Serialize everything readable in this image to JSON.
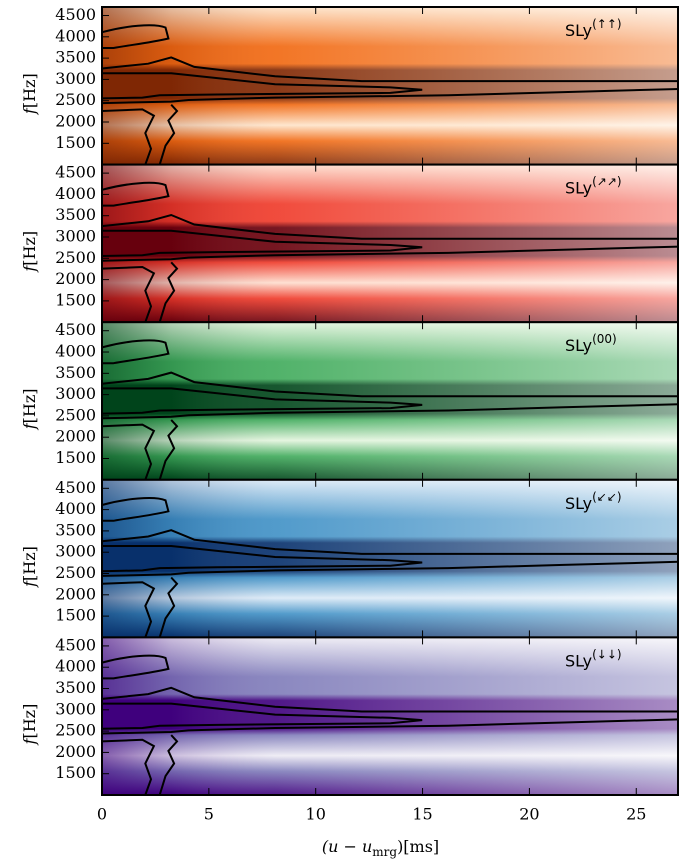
{
  "chart_data": [
    {
      "type": "spectrogram",
      "label": {
        "main": "SLy",
        "sup": "(↑↑)"
      },
      "y_label": {
        "var": "f",
        "unit": "[Hz]"
      },
      "colors": [
        "#7f2704",
        "#f16913",
        "#fee6ce"
      ],
      "xlim": [
        0,
        27
      ],
      "xticks": [
        0,
        5,
        10,
        15,
        20,
        25
      ],
      "ylim": [
        1000,
        4700
      ],
      "yticks": [
        1500,
        2000,
        2500,
        3000,
        3500,
        4000,
        4500
      ]
    },
    {
      "type": "spectrogram",
      "label": {
        "main": "SLy",
        "sup": "(↗↗)"
      },
      "y_label": {
        "var": "f",
        "unit": "[Hz]"
      },
      "colors": [
        "#67000d",
        "#ef3b2c",
        "#fee0d2"
      ],
      "xlim": [
        0,
        27
      ],
      "xticks": [
        0,
        5,
        10,
        15,
        20,
        25
      ],
      "ylim": [
        1000,
        4700
      ],
      "yticks": [
        1500,
        2000,
        2500,
        3000,
        3500,
        4000,
        4500
      ]
    },
    {
      "type": "spectrogram",
      "label": {
        "main": "SLy",
        "sup": "(00)"
      },
      "y_label": {
        "var": "f",
        "unit": "[Hz]"
      },
      "colors": [
        "#00441b",
        "#41ab5d",
        "#e5f5e0"
      ],
      "xlim": [
        0,
        27
      ],
      "xticks": [
        0,
        5,
        10,
        15,
        20,
        25
      ],
      "ylim": [
        1000,
        4700
      ],
      "yticks": [
        1500,
        2000,
        2500,
        3000,
        3500,
        4000,
        4500
      ]
    },
    {
      "type": "spectrogram",
      "label": {
        "main": "SLy",
        "sup": "(↙↙)"
      },
      "y_label": {
        "var": "f",
        "unit": "[Hz]"
      },
      "colors": [
        "#08306b",
        "#4292c6",
        "#deebf7"
      ],
      "xlim": [
        0,
        27
      ],
      "xticks": [
        0,
        5,
        10,
        15,
        20,
        25
      ],
      "ylim": [
        1000,
        4700
      ],
      "yticks": [
        1500,
        2000,
        2500,
        3000,
        3500,
        4000,
        4500
      ]
    },
    {
      "type": "spectrogram",
      "label": {
        "main": "SLy",
        "sup": "(↓↓)"
      },
      "y_label": {
        "var": "f",
        "unit": "[Hz]"
      },
      "colors": [
        "#3f007d",
        "#807dba",
        "#efedf5"
      ],
      "xlim": [
        0,
        27
      ],
      "xticks": [
        0,
        5,
        10,
        15,
        20,
        25
      ],
      "ylim": [
        1000,
        4700
      ],
      "yticks": [
        1500,
        2000,
        2500,
        3000,
        3500,
        4000,
        4500
      ],
      "x_label": {
        "main": "(u − u",
        "sub": "mrg",
        "tail": ")[ms]"
      }
    }
  ]
}
